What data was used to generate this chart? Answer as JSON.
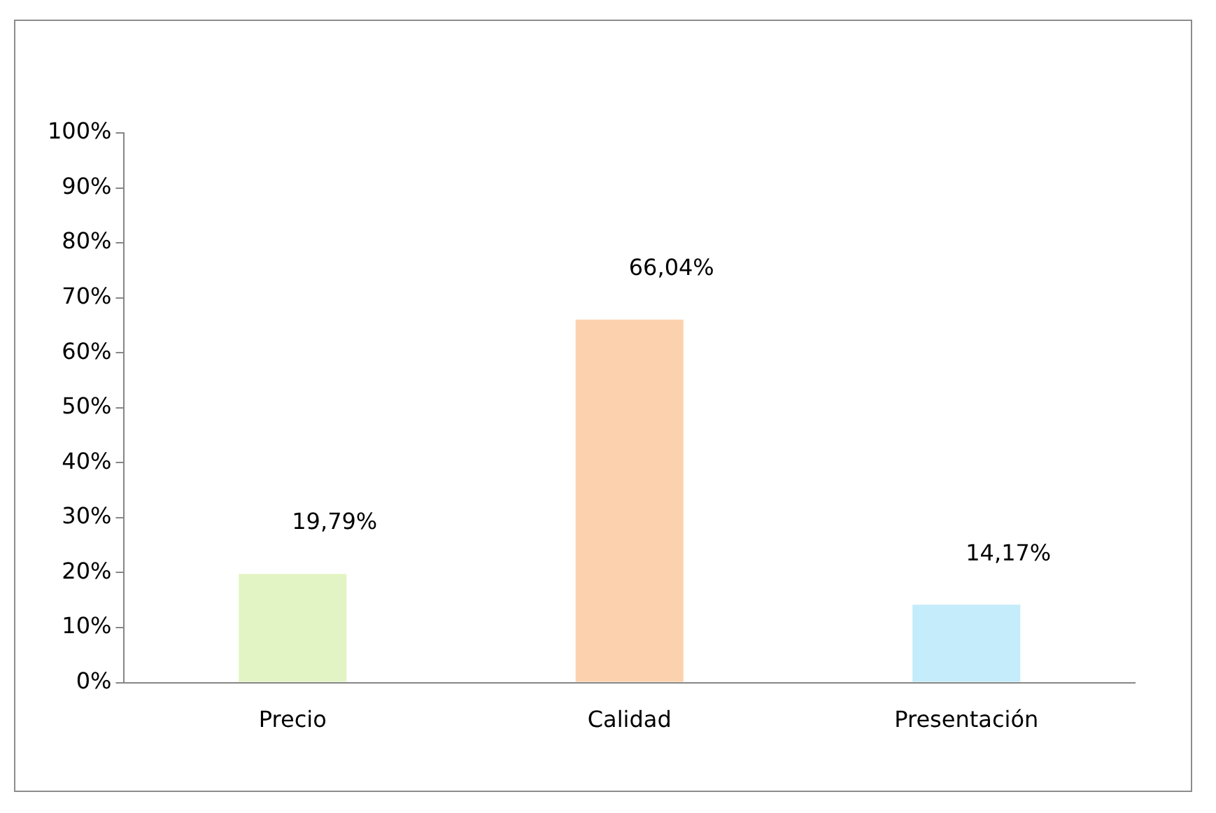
{
  "chart_data": {
    "type": "bar",
    "categories": [
      "Precio",
      "Calidad",
      "Presentación"
    ],
    "values": [
      19.79,
      66.04,
      14.17
    ],
    "colors": [
      "#e3f4c4",
      "#fcd2ae",
      "#c4ecfa"
    ],
    "value_labels": [
      "19,79%",
      "66,04%",
      "14,17%"
    ],
    "ylim": [
      0,
      100
    ],
    "yticks": [
      {
        "value": 0,
        "label": "0%"
      },
      {
        "value": 10,
        "label": "10%"
      },
      {
        "value": 20,
        "label": "20%"
      },
      {
        "value": 30,
        "label": "30%"
      },
      {
        "value": 40,
        "label": "40%"
      },
      {
        "value": 50,
        "label": "50%"
      },
      {
        "value": 60,
        "label": "60%"
      },
      {
        "value": 70,
        "label": "70%"
      },
      {
        "value": 80,
        "label": "80%"
      },
      {
        "value": 90,
        "label": "90%"
      },
      {
        "value": 100,
        "label": "100%"
      }
    ],
    "grid": false,
    "legend": false
  }
}
